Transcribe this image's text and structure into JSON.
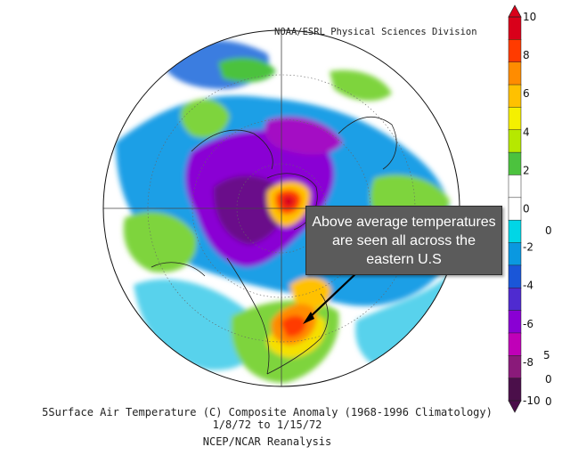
{
  "header": {
    "source": "NOAA/ESRL Physical Sciences Division"
  },
  "caption": {
    "line1": "5Surface Air Temperature (C) Composite Anomaly (1968-1996 Climatology)",
    "line2": "1/8/72  to 1/15/72",
    "line3": "NCEP/NCAR Reanalysis"
  },
  "annotation": {
    "text": "Above average temperatures are seen all across the eastern U.S"
  },
  "colorbar": {
    "labels": [
      "10",
      "8",
      "6",
      "4",
      "2",
      "0",
      "-2",
      "-4",
      "-6",
      "-8",
      "-10"
    ],
    "colors": [
      "#d9001a",
      "#ff3b00",
      "#ff8c00",
      "#ffc100",
      "#f5f000",
      "#b6e800",
      "#4cc23e",
      "#ffffff",
      "#ffffff",
      "#00d6e6",
      "#0a98e0",
      "#1a56d8",
      "#4f2bd0",
      "#8a00d4",
      "#c000b8",
      "#8a1a7a",
      "#4b0f4a"
    ]
  },
  "stray_labels": [
    "0",
    "5",
    "0",
    "0"
  ]
}
